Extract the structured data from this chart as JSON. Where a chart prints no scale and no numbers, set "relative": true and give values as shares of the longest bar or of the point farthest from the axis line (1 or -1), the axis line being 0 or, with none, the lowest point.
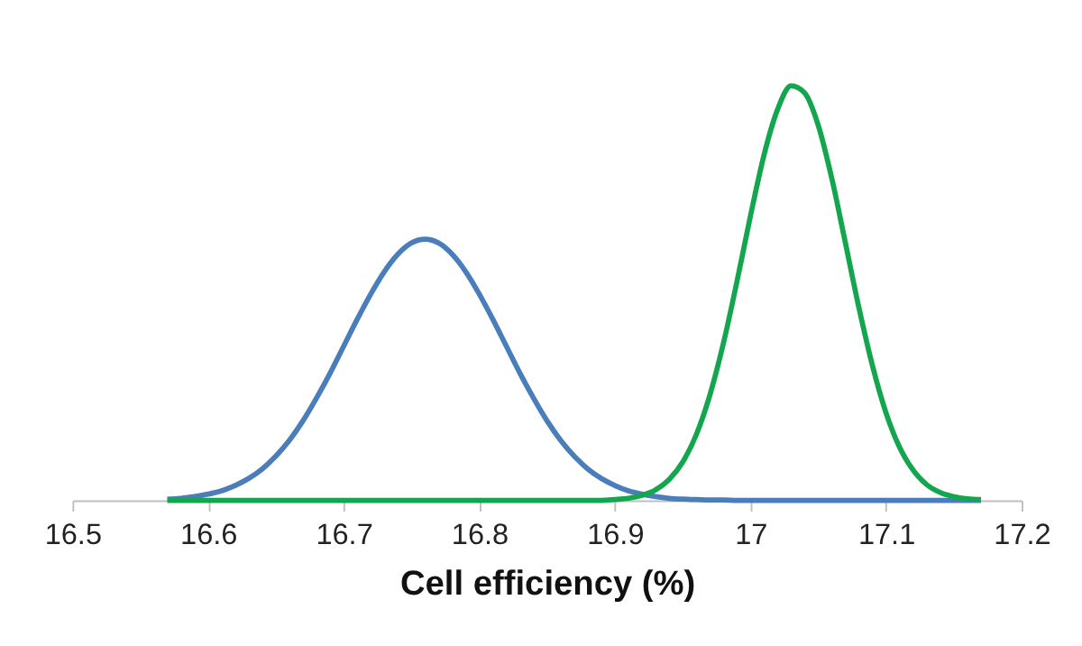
{
  "chart_data": {
    "type": "line",
    "relative": true,
    "xlabel": "Cell efficiency (%)",
    "xlim": [
      16.5,
      17.2
    ],
    "xticks": [
      16.5,
      16.6,
      16.7,
      16.8,
      16.9,
      17,
      17.1,
      17.2
    ],
    "grid": false,
    "legend": false,
    "marker": "none",
    "line_style": "solid",
    "x": [
      16.57,
      16.58,
      16.59,
      16.6,
      16.61,
      16.62,
      16.63,
      16.64,
      16.65,
      16.66,
      16.67,
      16.68,
      16.69,
      16.7,
      16.71,
      16.72,
      16.73,
      16.74,
      16.75,
      16.76,
      16.77,
      16.78,
      16.79,
      16.8,
      16.81,
      16.82,
      16.83,
      16.84,
      16.85,
      16.86,
      16.87,
      16.88,
      16.89,
      16.9,
      16.91,
      16.92,
      16.93,
      16.94,
      16.95,
      16.96,
      16.97,
      16.98,
      16.99,
      17.0,
      17.01,
      17.02,
      17.03,
      17.04,
      17.05,
      17.06,
      17.07,
      17.08,
      17.09,
      17.1,
      17.11,
      17.12,
      17.13,
      17.14,
      17.15,
      17.16,
      17.17
    ],
    "series": [
      {
        "color": "#4a7ebb",
        "values": [
          0.003,
          0.005,
          0.009,
          0.015,
          0.023,
          0.036,
          0.053,
          0.076,
          0.107,
          0.145,
          0.192,
          0.247,
          0.307,
          0.372,
          0.437,
          0.498,
          0.552,
          0.594,
          0.621,
          0.63,
          0.621,
          0.594,
          0.552,
          0.498,
          0.437,
          0.372,
          0.307,
          0.247,
          0.192,
          0.145,
          0.107,
          0.076,
          0.053,
          0.036,
          0.023,
          0.015,
          0.009,
          0.005,
          0.003,
          0.002,
          0.001,
          0.001,
          0,
          0,
          0,
          0,
          0,
          0,
          0,
          0,
          0,
          0,
          0,
          0,
          0,
          0,
          0,
          0,
          0,
          0,
          0
        ]
      },
      {
        "color": "#13a64f",
        "values": [
          0,
          0,
          0,
          0,
          0,
          0,
          0,
          0,
          0,
          0,
          0,
          0,
          0,
          0,
          0,
          0,
          0,
          0,
          0,
          0,
          0,
          0,
          0,
          0,
          0,
          0,
          0,
          0,
          0,
          0,
          0,
          0,
          0,
          0.002,
          0.005,
          0.012,
          0.025,
          0.05,
          0.092,
          0.158,
          0.253,
          0.378,
          0.527,
          0.686,
          0.833,
          0.943,
          1,
          0.983,
          0.905,
          0.777,
          0.622,
          0.465,
          0.325,
          0.211,
          0.128,
          0.073,
          0.038,
          0.019,
          0.009,
          0.004,
          0.002
        ]
      }
    ]
  }
}
